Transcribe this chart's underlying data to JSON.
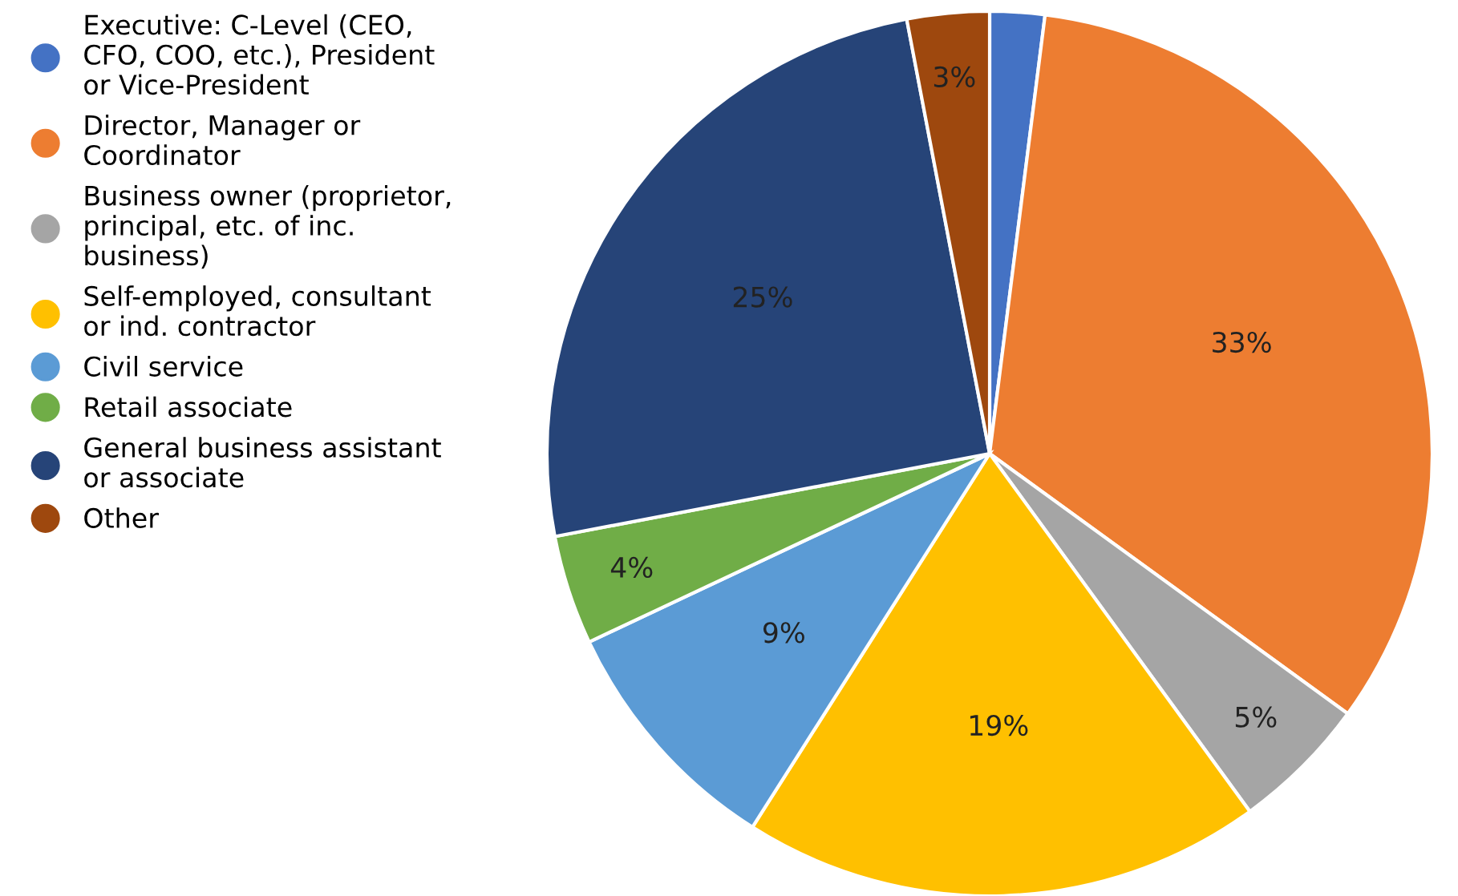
{
  "chart_data": {
    "type": "pie",
    "categories": [
      "Executive: C-Level (CEO,\nCFO, COO, etc.), President\nor Vice-President",
      "Director, Manager or\nCoordinator",
      "Business owner (proprietor,\nprincipal, etc. of inc.\nbusiness)",
      "Self-employed, consultant\nor ind. contractor",
      "Civil service",
      "Retail associate",
      "General business assistant\nor associate",
      "Other"
    ],
    "values": [
      2,
      33,
      5,
      19,
      9,
      4,
      25,
      3
    ],
    "value_labels": [
      null,
      "33%",
      "5%",
      "19%",
      "9%",
      "4%",
      "25%",
      "3%"
    ],
    "colors": [
      "#4472c4",
      "#ed7d31",
      "#a5a5a5",
      "#ffc000",
      "#5b9bd5",
      "#70ad47",
      "#264478",
      "#9e480e"
    ],
    "legend": "left"
  }
}
